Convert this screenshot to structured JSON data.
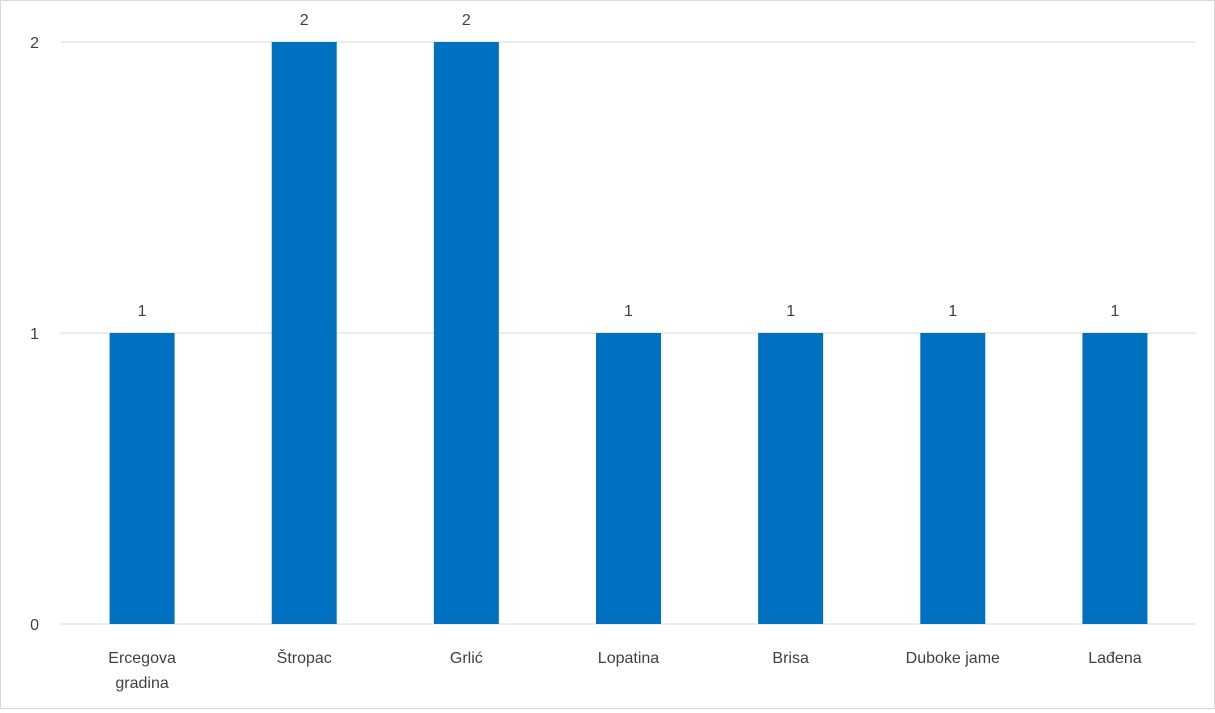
{
  "chart_data": {
    "type": "bar",
    "categories": [
      [
        "Ercegova",
        "gradina"
      ],
      [
        "Štropac"
      ],
      [
        "Grlić"
      ],
      [
        "Lopatina"
      ],
      [
        "Brisa"
      ],
      [
        "Duboke jame"
      ],
      [
        "Lađena"
      ]
    ],
    "values": [
      1,
      2,
      2,
      1,
      1,
      1,
      1
    ],
    "data_labels": [
      "1",
      "2",
      "2",
      "1",
      "1",
      "1",
      "1"
    ],
    "y_ticks": [
      0,
      1,
      2
    ],
    "ylim": [
      0,
      2
    ],
    "grid": true,
    "legend": "none",
    "bar_color": "#0070c0",
    "grid_color": "#d9d9d9",
    "text_color": "#404040"
  }
}
